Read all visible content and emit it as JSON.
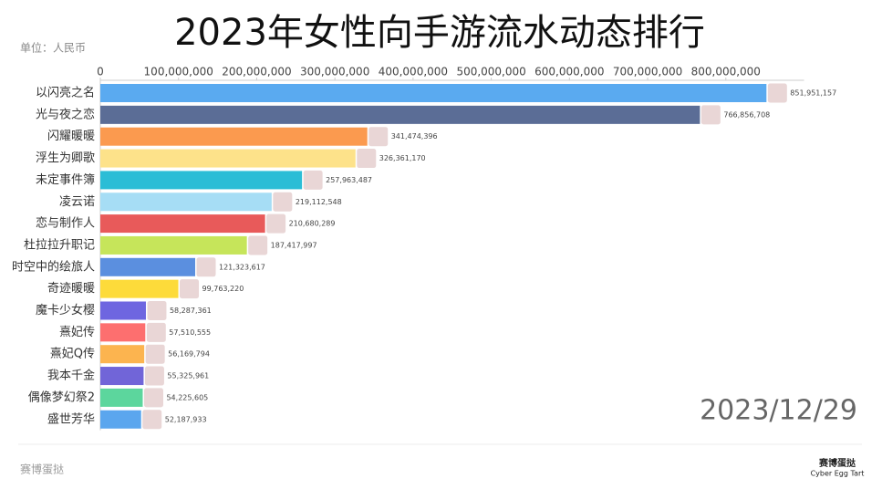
{
  "chart_data": {
    "type": "bar",
    "orientation": "horizontal",
    "title": "2023年女性向手游流水动态排行",
    "unit": "单位：人民币",
    "date": "2023/12/29",
    "watermark": "赛博蛋挞",
    "brand": "赛博蛋挞",
    "brand_sub": "Cyber Egg Tart",
    "categories": [
      "以闪亮之名",
      "光与夜之恋",
      "闪耀暖暖",
      "浮生为卿歌",
      "未定事件簿",
      "凌云诺",
      "恋与制作人",
      "杜拉拉升职记",
      "时空中的绘旅人",
      "奇迹暖暖",
      "魔卡少女樱",
      "熹妃传",
      "熹妃Q传",
      "我本千金",
      "偶像梦幻祭2",
      "盛世芳华"
    ],
    "values": [
      851951157,
      766856708,
      341474396,
      326361170,
      257963487,
      219112548,
      210680289,
      187417997,
      121323617,
      99763220,
      58287361,
      57510555,
      56169794,
      55325961,
      54225605,
      52187933
    ],
    "value_labels": [
      "851,951,157",
      "766,856,708",
      "341,474,396",
      "326,361,170",
      "257,963,487",
      "219,112,548",
      "210,680,289",
      "187,417,997",
      "121,323,617",
      "99,763,220",
      "58,287,361",
      "57,510,555",
      "56,169,794",
      "55,325,961",
      "54,225,605",
      "52,187,933"
    ],
    "colors": [
      "#5aaaf0",
      "#5b6d96",
      "#fb9a4f",
      "#fde28a",
      "#2bbdd6",
      "#a6ddf5",
      "#e85a5a",
      "#c6e55a",
      "#5b8fdf",
      "#fddb3a",
      "#6e66e0",
      "#fd6f6f",
      "#fcb44f",
      "#7165d8",
      "#5cd69d",
      "#5ba6ee"
    ],
    "xlim": [
      0,
      900000000
    ],
    "xticks": [
      0,
      {
        "value": 100000000,
        "label": "100,000,000"
      },
      {
        "value": 200000000,
        "label": "200,000,000"
      },
      {
        "value": 300000000,
        "label": "300,000,000"
      },
      {
        "value": 400000000,
        "label": "400,000,000"
      },
      {
        "value": 500000000,
        "label": "500,000,000"
      },
      {
        "value": 600000000,
        "label": "600,000,000"
      },
      {
        "value": 700000000,
        "label": "700,000,000"
      },
      {
        "value": 800000000,
        "label": "800,000,000"
      }
    ]
  }
}
